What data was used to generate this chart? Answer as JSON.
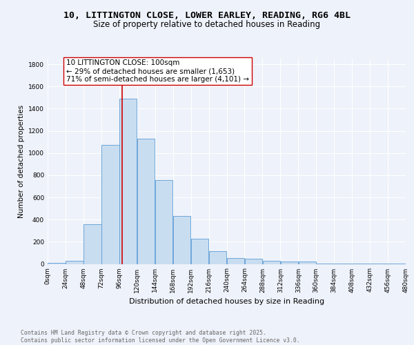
{
  "title_line1": "10, LITTINGTON CLOSE, LOWER EARLEY, READING, RG6 4BL",
  "title_line2": "Size of property relative to detached houses in Reading",
  "xlabel": "Distribution of detached houses by size in Reading",
  "ylabel": "Number of detached properties",
  "bin_edges": [
    0,
    24,
    48,
    72,
    96,
    120,
    144,
    168,
    192,
    216,
    240,
    264,
    288,
    312,
    336,
    360,
    384,
    408,
    432,
    456,
    480
  ],
  "bar_heights": [
    10,
    30,
    355,
    1070,
    1490,
    1130,
    755,
    435,
    225,
    115,
    55,
    45,
    30,
    20,
    20,
    5,
    5,
    2,
    2,
    2
  ],
  "bar_color": "#c9ddf0",
  "bar_edge_color": "#5b9bd5",
  "property_size": 100,
  "vline_color": "#cc0000",
  "annotation_text": "10 LITTINGTON CLOSE: 100sqm\n← 29% of detached houses are smaller (1,653)\n71% of semi-detached houses are larger (4,101) →",
  "annotation_box_edge_color": "#cc0000",
  "annotation_fontsize": 7.5,
  "ylim": [
    0,
    1850
  ],
  "yticks": [
    0,
    200,
    400,
    600,
    800,
    1000,
    1200,
    1400,
    1600,
    1800
  ],
  "background_color": "#eef2fa",
  "grid_color": "#ffffff",
  "footer_text": "Contains HM Land Registry data © Crown copyright and database right 2025.\nContains public sector information licensed under the Open Government Licence v3.0.",
  "title_fontsize": 9.5,
  "subtitle_fontsize": 8.5,
  "xlabel_fontsize": 8,
  "ylabel_fontsize": 7.5,
  "tick_fontsize": 6.5,
  "footer_fontsize": 5.8
}
